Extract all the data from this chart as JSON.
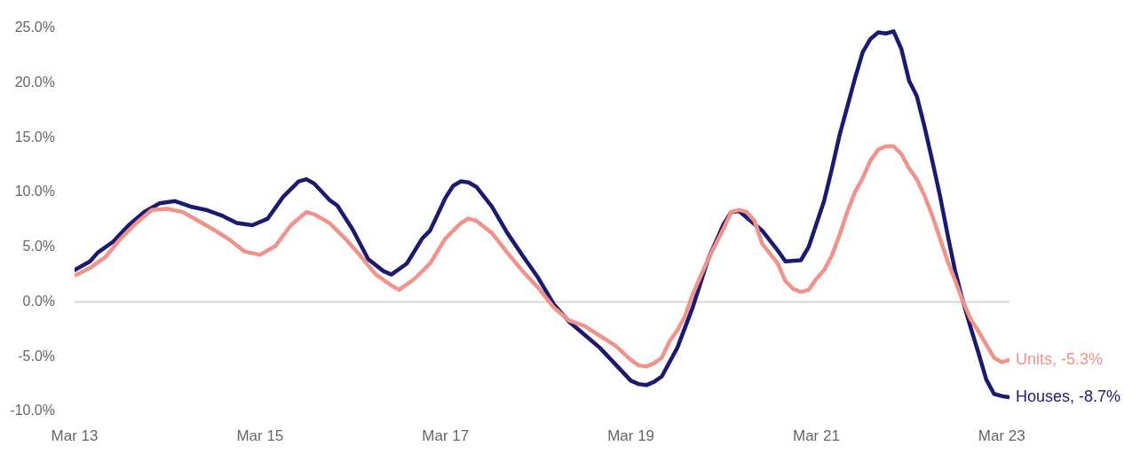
{
  "chart_data": {
    "type": "line",
    "xlim": [
      "2013-03",
      "2023-04"
    ],
    "xticks": [
      {
        "value": "2013-03",
        "label": "Mar 13"
      },
      {
        "value": "2015-03",
        "label": "Mar 15"
      },
      {
        "value": "2017-03",
        "label": "Mar 17"
      },
      {
        "value": "2019-03",
        "label": "Mar 19"
      },
      {
        "value": "2021-03",
        "label": "Mar 21"
      },
      {
        "value": "2023-03",
        "label": "Mar 23"
      }
    ],
    "ylim": [
      -10,
      25
    ],
    "yticks": [
      {
        "value": -10,
        "label": "-10.0%"
      },
      {
        "value": -5,
        "label": "-5.0%"
      },
      {
        "value": 0,
        "label": "0.0%"
      },
      {
        "value": 5,
        "label": "5.0%"
      },
      {
        "value": 10,
        "label": "10.0%"
      },
      {
        "value": 15,
        "label": "15.0%"
      },
      {
        "value": 20,
        "label": "20.0%"
      },
      {
        "value": 25,
        "label": "25.0%"
      }
    ],
    "grid": false,
    "legend": false,
    "ref_lines": [
      {
        "axis": "y",
        "value": 0,
        "color": "#d6d6d6"
      }
    ],
    "marker": "none",
    "line_style": "solid",
    "series": [
      {
        "name": "Units, -5.3%",
        "color": "#f0938a",
        "x": [
          "2013-03",
          "2013-05",
          "2013-07",
          "2013-09",
          "2013-11",
          "2014-01",
          "2014-03",
          "2014-05",
          "2014-07",
          "2014-09",
          "2014-11",
          "2015-01",
          "2015-03",
          "2015-05",
          "2015-07",
          "2015-09",
          "2015-10",
          "2015-12",
          "2016-02",
          "2016-04",
          "2016-06",
          "2016-08",
          "2016-09",
          "2016-11",
          "2017-01",
          "2017-03",
          "2017-05",
          "2017-06",
          "2017-07",
          "2017-09",
          "2017-11",
          "2018-01",
          "2018-03",
          "2018-05",
          "2018-07",
          "2018-09",
          "2018-11",
          "2019-01",
          "2019-03",
          "2019-04",
          "2019-05",
          "2019-06",
          "2019-07",
          "2019-08",
          "2019-09",
          "2019-10",
          "2019-11",
          "2020-01",
          "2020-03",
          "2020-04",
          "2020-05",
          "2020-06",
          "2020-07",
          "2020-08",
          "2020-10",
          "2020-11",
          "2020-12",
          "2021-01",
          "2021-02",
          "2021-03",
          "2021-04",
          "2021-05",
          "2021-06",
          "2021-07",
          "2021-08",
          "2021-09",
          "2021-10",
          "2021-11",
          "2021-12",
          "2022-01",
          "2022-02",
          "2022-03",
          "2022-04",
          "2022-05",
          "2022-06",
          "2022-07",
          "2022-08",
          "2022-09",
          "2022-10",
          "2022-11",
          "2022-12",
          "2023-01",
          "2023-02",
          "2023-03",
          "2023-04"
        ],
        "values": [
          2.4,
          3.1,
          4.1,
          5.8,
          7.2,
          8.4,
          8.5,
          8.2,
          7.4,
          6.6,
          5.7,
          4.6,
          4.3,
          5.1,
          7.0,
          8.2,
          8.0,
          7.2,
          5.8,
          4.2,
          2.5,
          1.5,
          1.1,
          2.1,
          3.5,
          5.8,
          7.2,
          7.6,
          7.4,
          6.3,
          4.5,
          2.8,
          1.3,
          -0.5,
          -1.7,
          -2.2,
          -3.1,
          -4.0,
          -5.3,
          -5.8,
          -5.9,
          -5.6,
          -5.1,
          -3.6,
          -2.6,
          -1.3,
          0.7,
          3.9,
          6.7,
          8.2,
          8.4,
          8.2,
          7.4,
          5.3,
          3.5,
          1.9,
          1.2,
          0.9,
          1.1,
          2.1,
          2.9,
          4.2,
          6.1,
          8.2,
          10.0,
          11.3,
          12.9,
          13.9,
          14.2,
          14.2,
          13.5,
          12.2,
          11.2,
          9.7,
          7.9,
          5.8,
          3.7,
          1.9,
          0.0,
          -1.6,
          -2.7,
          -3.9,
          -5.1,
          -5.5,
          -5.3
        ]
      },
      {
        "name": "Houses, -8.7%",
        "color": "#1b1a6e",
        "x": [
          "2013-03",
          "2013-05",
          "2013-06",
          "2013-08",
          "2013-10",
          "2013-12",
          "2014-02",
          "2014-04",
          "2014-06",
          "2014-08",
          "2014-10",
          "2014-12",
          "2015-02",
          "2015-04",
          "2015-06",
          "2015-08",
          "2015-09",
          "2015-10",
          "2015-12",
          "2016-01",
          "2016-03",
          "2016-05",
          "2016-07",
          "2016-08",
          "2016-10",
          "2016-12",
          "2017-01",
          "2017-03",
          "2017-04",
          "2017-05",
          "2017-06",
          "2017-07",
          "2017-09",
          "2017-11",
          "2018-01",
          "2018-03",
          "2018-05",
          "2018-07",
          "2018-09",
          "2018-11",
          "2019-01",
          "2019-03",
          "2019-04",
          "2019-05",
          "2019-06",
          "2019-07",
          "2019-09",
          "2019-11",
          "2020-01",
          "2020-03",
          "2020-04",
          "2020-05",
          "2020-07",
          "2020-08",
          "2020-10",
          "2020-11",
          "2021-01",
          "2021-02",
          "2021-03",
          "2021-04",
          "2021-05",
          "2021-06",
          "2021-07",
          "2021-08",
          "2021-09",
          "2021-10",
          "2021-11",
          "2021-12",
          "2022-01",
          "2022-02",
          "2022-03",
          "2022-04",
          "2022-05",
          "2022-06",
          "2022-07",
          "2022-08",
          "2022-09",
          "2022-10",
          "2022-11",
          "2022-12",
          "2023-01",
          "2023-02",
          "2023-03",
          "2023-04"
        ],
        "values": [
          2.9,
          3.7,
          4.5,
          5.5,
          7.0,
          8.2,
          9.0,
          9.2,
          8.7,
          8.4,
          7.9,
          7.2,
          7.0,
          7.6,
          9.6,
          11.0,
          11.2,
          10.8,
          9.3,
          8.8,
          6.6,
          3.9,
          2.8,
          2.5,
          3.5,
          5.8,
          6.5,
          9.5,
          10.6,
          11.0,
          10.9,
          10.5,
          8.7,
          6.3,
          4.2,
          2.2,
          -0.2,
          -1.8,
          -3.0,
          -4.2,
          -5.7,
          -7.2,
          -7.5,
          -7.6,
          -7.3,
          -6.8,
          -4.2,
          -0.5,
          3.9,
          7.1,
          8.2,
          8.3,
          7.1,
          6.5,
          4.7,
          3.7,
          3.8,
          5.0,
          7.1,
          9.2,
          12.1,
          15.2,
          17.8,
          20.4,
          22.8,
          24.0,
          24.6,
          24.5,
          24.7,
          23.1,
          20.2,
          18.8,
          16.0,
          12.9,
          9.7,
          6.1,
          2.7,
          0.0,
          -2.4,
          -4.7,
          -7.1,
          -8.4,
          -8.6,
          -8.7
        ]
      }
    ]
  }
}
